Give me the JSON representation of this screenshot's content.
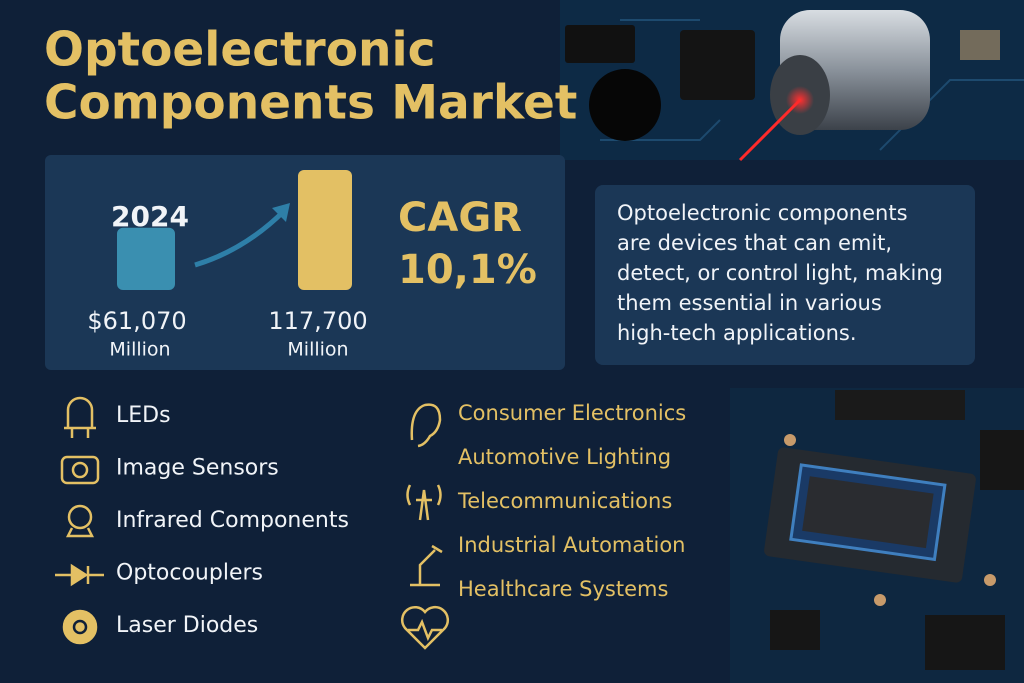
{
  "header": {
    "title_lines": [
      "Optoelectronic",
      "Components Market"
    ]
  },
  "market": {
    "year": "2024",
    "values": [
      61070,
      117700
    ],
    "value_labels": [
      "$61,070",
      "117,700"
    ],
    "unit": "Million",
    "cagr_label": "CAGR",
    "cagr": "10,1%"
  },
  "description": [
    "Optoelectronic components",
    "are devices that can emit,",
    "detect, or control light, making",
    "them essential in various",
    "high-tech applications."
  ],
  "components": [
    "LEDs",
    "Image Sensors",
    "Infrared Components",
    "Optocouplers",
    "Laser Diodes"
  ],
  "applications": [
    "Consumer Electronics",
    "Automotive Lighting",
    "Telecommunications",
    "Industrial Automation",
    "Healthcare Systems"
  ]
}
